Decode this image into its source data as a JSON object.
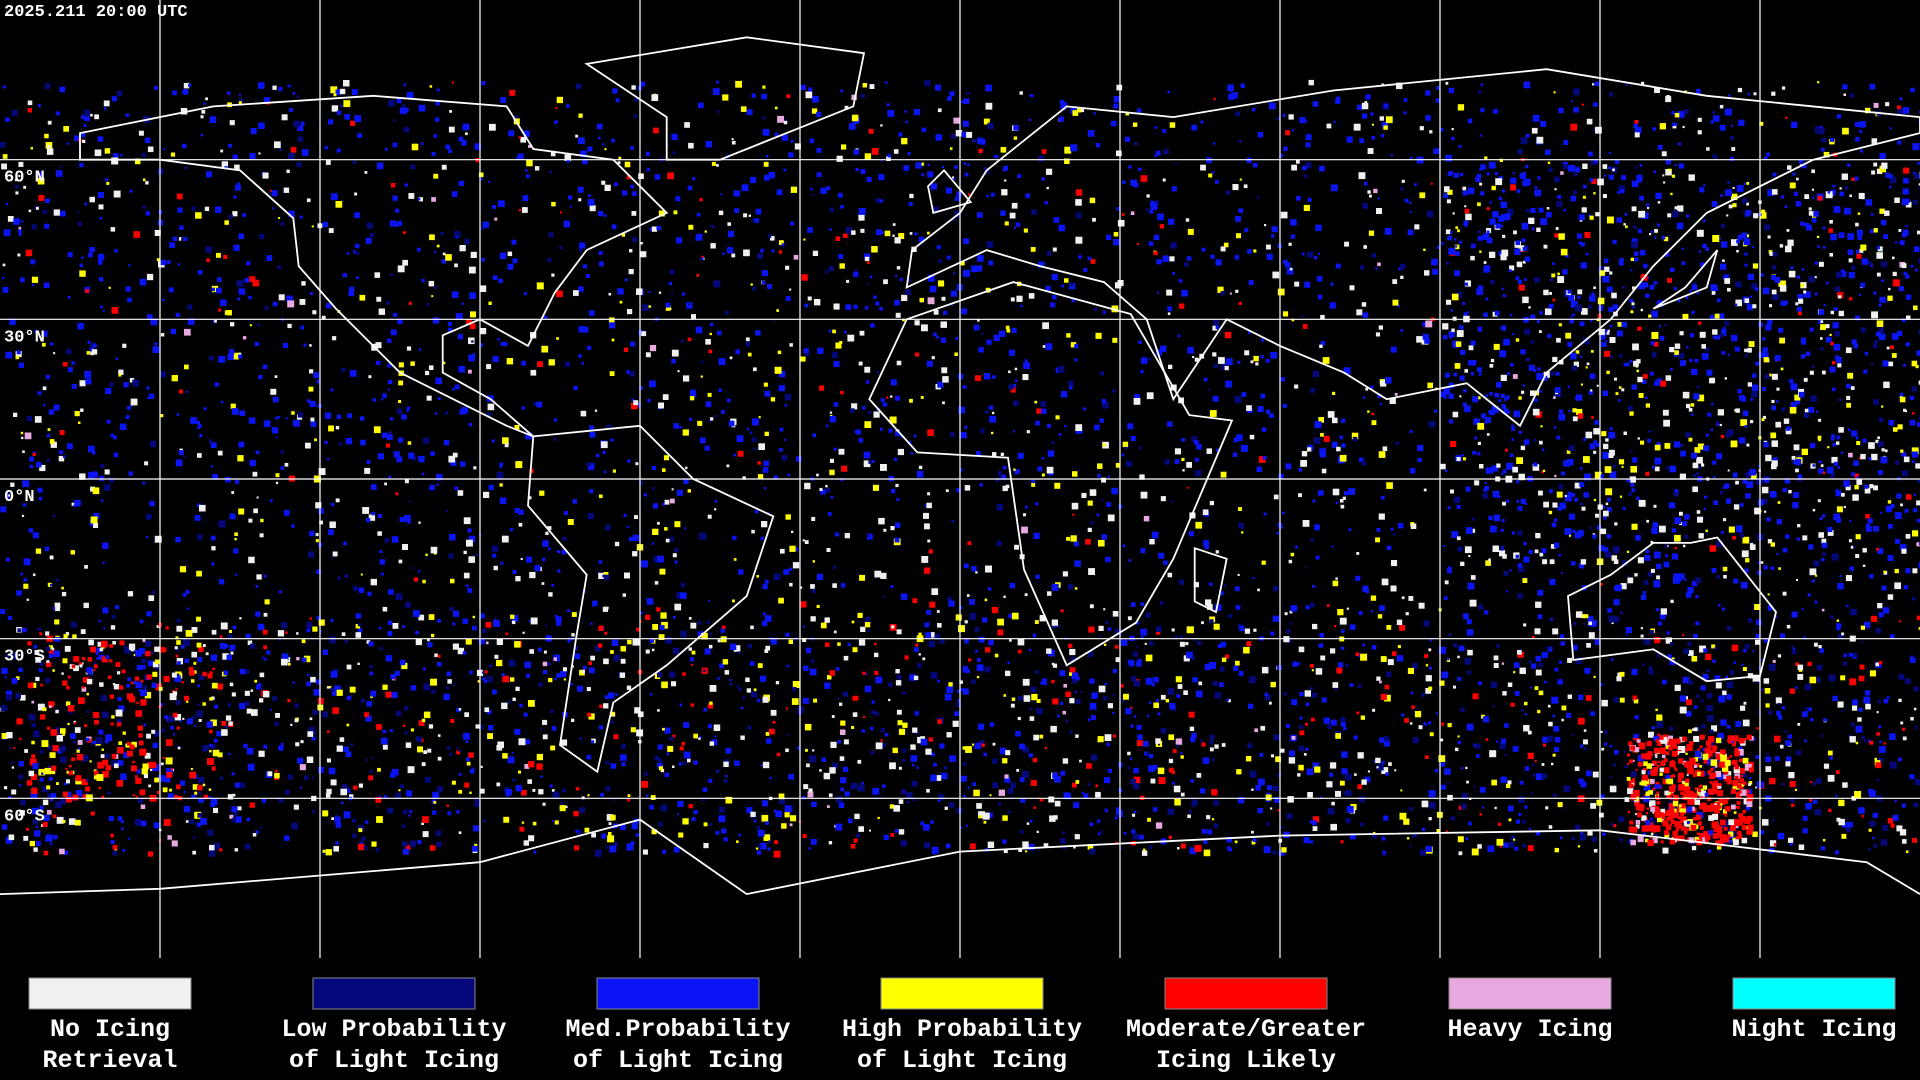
{
  "header": {
    "timestamp": "2025.211 20:00 UTC"
  },
  "map": {
    "latitude_labels": [
      "60°N",
      "30°N",
      "0°N",
      "30°S",
      "60°S"
    ]
  },
  "legend": {
    "items": [
      {
        "label_lines": [
          "No Icing",
          "Retrieval"
        ],
        "color": "#f0f0f0"
      },
      {
        "label_lines": [
          "Low Probability",
          "of Light Icing"
        ],
        "color": "#05087a"
      },
      {
        "label_lines": [
          "Med.Probability",
          "of Light Icing"
        ],
        "color": "#0a14f5"
      },
      {
        "label_lines": [
          "High Probability",
          "of Light Icing"
        ],
        "color": "#ffff00"
      },
      {
        "label_lines": [
          "Moderate/Greater",
          "Icing Likely"
        ],
        "color": "#ff0000"
      },
      {
        "label_lines": [
          "Heavy Icing"
        ],
        "color": "#e8a8e0"
      },
      {
        "label_lines": [
          "Night Icing"
        ],
        "color": "#00ffff"
      }
    ]
  }
}
